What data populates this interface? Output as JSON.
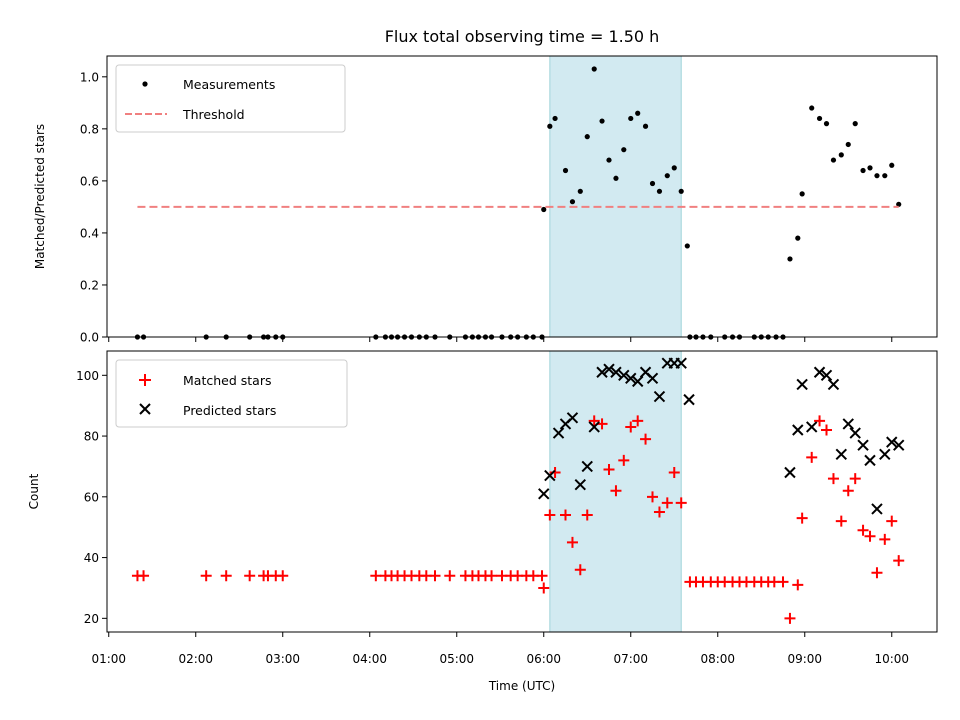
{
  "chart_data": {
    "type": "scatter",
    "title": "Flux total observing time = 1.50 h",
    "xlabel": "Time (UTC)",
    "x_unit": "hours UTC",
    "xlim": [
      0.98,
      10.52
    ],
    "xticks": [
      {
        "value": 1,
        "label": "01:00"
      },
      {
        "value": 2,
        "label": "02:00"
      },
      {
        "value": 3,
        "label": "03:00"
      },
      {
        "value": 4,
        "label": "04:00"
      },
      {
        "value": 5,
        "label": "05:00"
      },
      {
        "value": 6,
        "label": "06:00"
      },
      {
        "value": 7,
        "label": "07:00"
      },
      {
        "value": 8,
        "label": "08:00"
      },
      {
        "value": 9,
        "label": "09:00"
      },
      {
        "value": 10,
        "label": "10:00"
      }
    ],
    "highlight_span": {
      "x_start": 6.07,
      "x_end": 7.58,
      "color": "#add8e6"
    },
    "panels": [
      {
        "ylabel": "Matched/Predicted stars",
        "ylim": [
          0,
          1.08
        ],
        "yticks": [
          {
            "value": 0,
            "label": "0.0"
          },
          {
            "value": 0.2,
            "label": "0.2"
          },
          {
            "value": 0.4,
            "label": "0.4"
          },
          {
            "value": 0.6,
            "label": "0.6"
          },
          {
            "value": 0.8,
            "label": "0.8"
          },
          {
            "value": 1.0,
            "label": "1.0"
          }
        ],
        "legend_position": "top-left",
        "series": [
          {
            "name": "Measurements",
            "kind": "dot",
            "color": "#000000",
            "x": [
              1.33,
              1.4,
              2.12,
              2.35,
              2.62,
              2.78,
              2.83,
              2.92,
              3.0,
              4.07,
              4.18,
              4.25,
              4.32,
              4.4,
              4.48,
              4.57,
              4.65,
              4.75,
              4.92,
              5.1,
              5.18,
              5.25,
              5.33,
              5.4,
              5.52,
              5.62,
              5.7,
              5.8,
              5.88,
              5.98,
              6.0,
              6.07,
              6.13,
              6.25,
              6.33,
              6.42,
              6.5,
              6.58,
              6.67,
              6.75,
              6.83,
              6.92,
              7.0,
              7.08,
              7.17,
              7.25,
              7.33,
              7.42,
              7.5,
              7.58,
              7.65,
              7.68,
              7.75,
              7.83,
              7.92,
              8.08,
              8.17,
              8.25,
              8.42,
              8.5,
              8.58,
              8.67,
              8.75,
              8.83,
              8.92,
              8.97,
              9.08,
              9.17,
              9.25,
              9.33,
              9.42,
              9.5,
              9.58,
              9.67,
              9.75,
              9.83,
              9.92,
              10.0,
              10.08
            ],
            "y": [
              0,
              0,
              0,
              0,
              0,
              0,
              0,
              0,
              0,
              0,
              0,
              0,
              0,
              0,
              0,
              0,
              0,
              0,
              0,
              0,
              0,
              0,
              0,
              0,
              0,
              0,
              0,
              0,
              0,
              0,
              0.49,
              0.81,
              0.84,
              0.64,
              0.52,
              0.56,
              0.77,
              1.03,
              0.83,
              0.68,
              0.61,
              0.72,
              0.84,
              0.86,
              0.81,
              0.59,
              0.56,
              0.62,
              0.65,
              0.56,
              0.35,
              0,
              0,
              0,
              0,
              0,
              0,
              0,
              0,
              0,
              0,
              0,
              0,
              0.3,
              0.38,
              0.55,
              0.88,
              0.84,
              0.82,
              0.68,
              0.7,
              0.74,
              0.82,
              0.64,
              0.65,
              0.62,
              0.62,
              0.66,
              0.51
            ]
          },
          {
            "name": "Threshold",
            "kind": "dashed-line",
            "color": "#f08080",
            "x": [
              1.33,
              10.08
            ],
            "y": [
              0.5,
              0.5
            ]
          }
        ]
      },
      {
        "ylabel": "Count",
        "ylim": [
          15.5,
          108
        ],
        "yticks": [
          {
            "value": 20,
            "label": "20"
          },
          {
            "value": 40,
            "label": "40"
          },
          {
            "value": 60,
            "label": "60"
          },
          {
            "value": 80,
            "label": "80"
          },
          {
            "value": 100,
            "label": "100"
          }
        ],
        "legend_position": "top-left",
        "series": [
          {
            "name": "Matched stars",
            "kind": "plus",
            "color": "#ff0000",
            "x": [
              1.33,
              1.4,
              2.12,
              2.35,
              2.62,
              2.78,
              2.83,
              2.92,
              3.0,
              4.07,
              4.18,
              4.25,
              4.32,
              4.4,
              4.48,
              4.57,
              4.65,
              4.75,
              4.92,
              5.1,
              5.18,
              5.25,
              5.33,
              5.4,
              5.52,
              5.62,
              5.7,
              5.8,
              5.88,
              5.98,
              6.0,
              6.07,
              6.13,
              6.25,
              6.33,
              6.42,
              6.5,
              6.58,
              6.67,
              6.75,
              6.83,
              6.92,
              7.0,
              7.08,
              7.17,
              7.25,
              7.33,
              7.42,
              7.5,
              7.58,
              7.68,
              7.75,
              7.83,
              7.92,
              8.0,
              8.08,
              8.17,
              8.25,
              8.33,
              8.42,
              8.5,
              8.58,
              8.65,
              8.75,
              8.83,
              8.92,
              8.97,
              9.08,
              9.17,
              9.25,
              9.33,
              9.42,
              9.5,
              9.58,
              9.67,
              9.75,
              9.83,
              9.92,
              10.0,
              10.08
            ],
            "y": [
              34,
              34,
              34,
              34,
              34,
              34,
              34,
              34,
              34,
              34,
              34,
              34,
              34,
              34,
              34,
              34,
              34,
              34,
              34,
              34,
              34,
              34,
              34,
              34,
              34,
              34,
              34,
              34,
              34,
              34,
              30,
              54,
              68,
              54,
              45,
              36,
              54,
              85,
              84,
              69,
              62,
              72,
              83,
              85,
              79,
              60,
              55,
              58,
              68,
              58,
              32,
              32,
              32,
              32,
              32,
              32,
              32,
              32,
              32,
              32,
              32,
              32,
              32,
              32,
              20,
              31,
              53,
              73,
              85,
              82,
              66,
              52,
              62,
              66,
              49,
              47,
              35,
              46,
              52,
              39
            ]
          },
          {
            "name": "Predicted stars",
            "kind": "cross",
            "color": "#000000",
            "x": [
              6.0,
              6.07,
              6.17,
              6.25,
              6.33,
              6.42,
              6.5,
              6.58,
              6.67,
              6.75,
              6.83,
              6.92,
              7.0,
              7.08,
              7.17,
              7.25,
              7.33,
              7.42,
              7.5,
              7.58,
              7.67,
              8.83,
              8.92,
              8.97,
              9.08,
              9.17,
              9.25,
              9.33,
              9.42,
              9.5,
              9.58,
              9.67,
              9.75,
              9.83,
              9.92,
              10.0,
              10.08
            ],
            "y": [
              61,
              67,
              81,
              84,
              86,
              64,
              70,
              83,
              101,
              102,
              101,
              100,
              99,
              98,
              101,
              99,
              93,
              104,
              104,
              104,
              92,
              68,
              82,
              97,
              83,
              101,
              100,
              97,
              74,
              84,
              81,
              77,
              72,
              56,
              74,
              78,
              77
            ]
          }
        ]
      }
    ]
  }
}
